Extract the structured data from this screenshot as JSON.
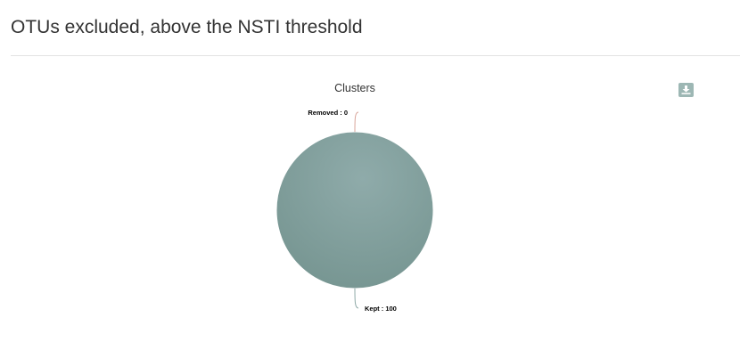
{
  "page": {
    "title": "OTUs excluded, above the NSTI threshold"
  },
  "toolbar": {
    "download_icon": "download-icon"
  },
  "colors": {
    "kept": "#7f9f9c",
    "removed": "#d9a69b",
    "button": "#9db7b4"
  },
  "chart_data": {
    "type": "pie",
    "title": "Clusters",
    "slices": [
      {
        "label": "Removed",
        "value": 0,
        "display": "Removed : 0"
      },
      {
        "label": "Kept",
        "value": 100,
        "display": "Kept : 100"
      }
    ]
  }
}
